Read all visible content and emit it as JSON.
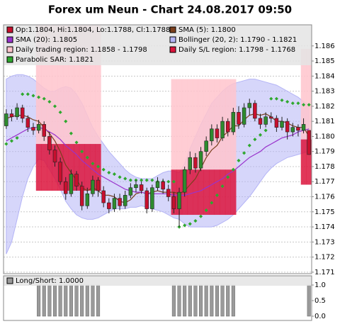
{
  "chart_data": [
    {
      "type": "candlestick",
      "title": "Forex um Neun - Chart 24.08.2017 09:50",
      "name": "Op:1.1804, Hi:1.1804, Lo:1.1788, Cl:1.1788",
      "up_color": "#2e8b2e",
      "down_color": "#c8102e",
      "open": [
        1.1807,
        1.1815,
        1.1813,
        1.1819,
        1.1812,
        1.1806,
        1.1804,
        1.1808,
        1.18,
        1.1791,
        1.1783,
        1.177,
        1.1762,
        1.1775,
        1.1767,
        1.1754,
        1.1762,
        1.1771,
        1.1764,
        1.1756,
        1.1752,
        1.1759,
        1.1754,
        1.1761,
        1.1766,
        1.1768,
        1.1764,
        1.1752,
        1.1766,
        1.177,
        1.1765,
        1.176,
        1.1752,
        1.1763,
        1.1778,
        1.1786,
        1.1779,
        1.179,
        1.1797,
        1.1805,
        1.1799,
        1.181,
        1.1803,
        1.1816,
        1.1808,
        1.1819,
        1.1822,
        1.1812,
        1.1808,
        1.1813,
        1.1812,
        1.1806,
        1.181,
        1.1803,
        1.1806,
        1.1804,
        1.1804
      ],
      "high": [
        1.1818,
        1.1818,
        1.1822,
        1.1821,
        1.1814,
        1.1809,
        1.1811,
        1.181,
        1.1803,
        1.1794,
        1.1786,
        1.1773,
        1.1778,
        1.1777,
        1.177,
        1.1766,
        1.1774,
        1.1773,
        1.1767,
        1.1759,
        1.1762,
        1.1762,
        1.1764,
        1.1769,
        1.1771,
        1.177,
        1.1766,
        1.1768,
        1.1773,
        1.1772,
        1.1768,
        1.1763,
        1.1766,
        1.178,
        1.179,
        1.1789,
        1.1793,
        1.18,
        1.1808,
        1.1808,
        1.1813,
        1.1812,
        1.1819,
        1.182,
        1.1822,
        1.1825,
        1.1824,
        1.1815,
        1.1816,
        1.1816,
        1.1814,
        1.1813,
        1.1812,
        1.1809,
        1.1808,
        1.1812,
        1.1804
      ],
      "low": [
        1.1805,
        1.181,
        1.1811,
        1.1809,
        1.1803,
        1.1801,
        1.1802,
        1.1797,
        1.1788,
        1.178,
        1.1768,
        1.1758,
        1.176,
        1.1764,
        1.1751,
        1.1752,
        1.176,
        1.176,
        1.1753,
        1.1749,
        1.175,
        1.1751,
        1.1752,
        1.1759,
        1.1763,
        1.1762,
        1.1749,
        1.175,
        1.1764,
        1.1762,
        1.1757,
        1.1749,
        1.174,
        1.176,
        1.1775,
        1.1776,
        1.1777,
        1.1787,
        1.1794,
        1.1796,
        1.1797,
        1.18,
        1.1801,
        1.1805,
        1.1806,
        1.1814,
        1.181,
        1.1805,
        1.1806,
        1.1809,
        1.1803,
        1.1804,
        1.1798,
        1.18,
        1.18,
        1.1802,
        1.1788
      ],
      "close": [
        1.1815,
        1.1813,
        1.1819,
        1.1812,
        1.1806,
        1.1804,
        1.1808,
        1.18,
        1.1791,
        1.1783,
        1.177,
        1.1762,
        1.1775,
        1.1767,
        1.1754,
        1.1762,
        1.1771,
        1.1764,
        1.1756,
        1.1752,
        1.1759,
        1.1754,
        1.1761,
        1.1766,
        1.1768,
        1.1764,
        1.1752,
        1.1766,
        1.177,
        1.1765,
        1.176,
        1.1752,
        1.1763,
        1.1778,
        1.1786,
        1.1779,
        1.179,
        1.1797,
        1.1805,
        1.1799,
        1.181,
        1.1803,
        1.1816,
        1.1808,
        1.1819,
        1.1822,
        1.1812,
        1.1808,
        1.1813,
        1.1812,
        1.1806,
        1.181,
        1.1803,
        1.1806,
        1.1804,
        1.1808,
        1.1788
      ],
      "ylim": [
        1.1709,
        1.1874
      ],
      "yticks": [
        1.171,
        1.172,
        1.173,
        1.174,
        1.175,
        1.176,
        1.177,
        1.178,
        1.179,
        {
          "value": 1.18,
          "label": "1.180"
        },
        1.181,
        1.182,
        1.183,
        1.184,
        1.185,
        1.186
      ],
      "grid": true,
      "series": [
        {
          "name": "SMA (5): 1.1800",
          "type": "line",
          "color": "#7b3f1d",
          "values": [
            1.1812,
            1.1813,
            1.1814,
            1.1814,
            1.1813,
            1.1811,
            1.181,
            1.1806,
            1.1802,
            1.1797,
            1.179,
            1.1781,
            1.1776,
            1.1771,
            1.1766,
            1.1764,
            1.1766,
            1.1764,
            1.1761,
            1.1761,
            1.176,
            1.1757,
            1.1756,
            1.1758,
            1.1762,
            1.1763,
            1.1762,
            1.1763,
            1.1764,
            1.1763,
            1.1763,
            1.1763,
            1.1762,
            1.1764,
            1.1768,
            1.1772,
            1.1779,
            1.1786,
            1.1791,
            1.1794,
            1.18,
            1.1803,
            1.1807,
            1.1807,
            1.1811,
            1.1814,
            1.1815,
            1.1814,
            1.1815,
            1.1813,
            1.181,
            1.181,
            1.1809,
            1.1807,
            1.1806,
            1.1806,
            1.18
          ]
        },
        {
          "name": "SMA (20): 1.1805",
          "type": "line",
          "color": "#9933cc",
          "values": [
            1.1797,
            1.1799,
            1.1801,
            1.1803,
            1.1805,
            1.1806,
            1.1806,
            1.1805,
            1.1803,
            1.1801,
            1.1798,
            1.1794,
            1.1791,
            1.1788,
            1.1784,
            1.1781,
            1.1778,
            1.1775,
            1.1773,
            1.1771,
            1.1769,
            1.1767,
            1.1765,
            1.1764,
            1.1763,
            1.1763,
            1.1762,
            1.1762,
            1.1762,
            1.1762,
            1.1762,
            1.1761,
            1.1761,
            1.1761,
            1.1762,
            1.1763,
            1.1764,
            1.1766,
            1.1768,
            1.177,
            1.1772,
            1.1775,
            1.1777,
            1.178,
            1.1783,
            1.1786,
            1.1788,
            1.179,
            1.1793,
            1.1795,
            1.1797,
            1.1799,
            1.18,
            1.1801,
            1.1803,
            1.1804,
            1.1805
          ]
        },
        {
          "name": "Bollinger (20, 2): 1.1790 - 1.1821",
          "type": "band",
          "color": "#b4b4f6",
          "upper": [
            1.1838,
            1.184,
            1.1841,
            1.1841,
            1.184,
            1.1838,
            1.1835,
            1.1832,
            1.183,
            1.183,
            1.1832,
            1.1833,
            1.1832,
            1.1828,
            1.1822,
            1.1814,
            1.1806,
            1.18,
            1.1795,
            1.179,
            1.1786,
            1.1782,
            1.1778,
            1.1775,
            1.1773,
            1.1772,
            1.1772,
            1.1772,
            1.1774,
            1.1776,
            1.1777,
            1.1777,
            1.1776,
            1.1782,
            1.1792,
            1.18,
            1.1808,
            1.1815,
            1.1822,
            1.1826,
            1.183,
            1.1833,
            1.1835,
            1.1836,
            1.1837,
            1.1838,
            1.1838,
            1.1837,
            1.1836,
            1.1835,
            1.1834,
            1.1832,
            1.183,
            1.1828,
            1.1826,
            1.1823,
            1.1821
          ],
          "lower": [
            1.1722,
            1.173,
            1.1745,
            1.176,
            1.1772,
            1.178,
            1.1785,
            1.1784,
            1.1778,
            1.1772,
            1.1765,
            1.1757,
            1.1752,
            1.1748,
            1.1746,
            1.1745,
            1.1745,
            1.1746,
            1.1748,
            1.175,
            1.1752,
            1.1752,
            1.1752,
            1.1753,
            1.1753,
            1.1754,
            1.1753,
            1.1752,
            1.1751,
            1.175,
            1.1748,
            1.1746,
            1.1745,
            1.1742,
            1.174,
            1.174,
            1.174,
            1.174,
            1.174,
            1.1741,
            1.1743,
            1.1745,
            1.1748,
            1.1752,
            1.1756,
            1.176,
            1.1765,
            1.177,
            1.1775,
            1.1779,
            1.1782,
            1.1784,
            1.1786,
            1.1787,
            1.1788,
            1.1789,
            1.179
          ]
        },
        {
          "name": "Daily trading region: 1.1858 - 1.1798",
          "type": "region",
          "color": "#ffc4cc",
          "upper": [
            null,
            null,
            null,
            null,
            null,
            null,
            1.1874,
            1.1874,
            1.1874,
            1.1874,
            1.1874,
            1.1874,
            1.1874,
            1.1874,
            1.1874,
            1.1874,
            1.1874,
            1.1874,
            null,
            null,
            null,
            null,
            null,
            null,
            null,
            null,
            null,
            null,
            null,
            null,
            null,
            1.1838,
            1.1838,
            1.1838,
            1.1838,
            1.1838,
            1.1838,
            1.1838,
            1.1838,
            1.1838,
            1.1838,
            1.1838,
            1.1838,
            null,
            null,
            null,
            null,
            null,
            null,
            null,
            null,
            null,
            null,
            null,
            null,
            1.1858,
            1.1858
          ],
          "lower": [
            null,
            null,
            null,
            null,
            null,
            null,
            1.1795,
            1.1795,
            1.1795,
            1.1795,
            1.1795,
            1.1795,
            1.1795,
            1.1795,
            1.1795,
            1.1795,
            1.1795,
            1.1795,
            null,
            null,
            null,
            null,
            null,
            null,
            null,
            null,
            null,
            null,
            null,
            null,
            null,
            1.1778,
            1.1778,
            1.1778,
            1.1778,
            1.1778,
            1.1778,
            1.1778,
            1.1778,
            1.1778,
            1.1778,
            1.1778,
            1.1778,
            null,
            null,
            null,
            null,
            null,
            null,
            null,
            null,
            null,
            null,
            null,
            null,
            1.1798,
            1.1798
          ]
        },
        {
          "name": "Daily S/L region: 1.1798 - 1.1768",
          "type": "region",
          "color": "#dc143c",
          "upper": [
            null,
            null,
            null,
            null,
            null,
            null,
            1.1795,
            1.1795,
            1.1795,
            1.1795,
            1.1795,
            1.1795,
            1.1795,
            1.1795,
            1.1795,
            1.1795,
            1.1795,
            1.1795,
            null,
            null,
            null,
            null,
            null,
            null,
            null,
            null,
            null,
            null,
            null,
            null,
            null,
            1.1778,
            1.1778,
            1.1778,
            1.1778,
            1.1778,
            1.1778,
            1.1778,
            1.1778,
            1.1778,
            1.1778,
            1.1778,
            1.1778,
            null,
            null,
            null,
            null,
            null,
            null,
            null,
            null,
            null,
            null,
            null,
            null,
            1.1798,
            1.1798
          ],
          "lower": [
            null,
            null,
            null,
            null,
            null,
            null,
            1.1764,
            1.1764,
            1.1764,
            1.1764,
            1.1764,
            1.1764,
            1.1764,
            1.1764,
            1.1764,
            1.1764,
            1.1764,
            1.1764,
            null,
            null,
            null,
            null,
            null,
            null,
            null,
            null,
            null,
            null,
            null,
            null,
            null,
            1.1748,
            1.1748,
            1.1748,
            1.1748,
            1.1748,
            1.1748,
            1.1748,
            1.1748,
            1.1748,
            1.1748,
            1.1748,
            1.1748,
            null,
            null,
            null,
            null,
            null,
            null,
            null,
            null,
            null,
            null,
            null,
            null,
            1.1768,
            1.1768
          ]
        },
        {
          "name": "Parabolic SAR: 1.1821",
          "type": "dots",
          "color": "#2ea82e",
          "values": [
            1.1795,
            1.1797,
            1.1799,
            1.1828,
            1.1828,
            1.1827,
            1.1826,
            1.1825,
            1.1823,
            1.182,
            1.1816,
            1.181,
            1.1802,
            1.1796,
            1.179,
            1.1786,
            1.1782,
            1.178,
            1.1778,
            1.1776,
            1.1775,
            1.1773,
            1.1772,
            1.1771,
            1.1771,
            1.1771,
            1.1771,
            1.1771,
            1.177,
            1.177,
            1.177,
            1.177,
            1.174,
            1.1741,
            1.1742,
            1.1744,
            1.1747,
            1.1751,
            1.1756,
            1.1761,
            1.1767,
            1.1773,
            1.1778,
            1.1784,
            1.1789,
            1.1794,
            1.1798,
            1.1801,
            1.1804,
            1.1825,
            1.1825,
            1.1824,
            1.1823,
            1.1822,
            1.1822,
            1.1821,
            1.1821
          ]
        }
      ]
    },
    {
      "type": "bar",
      "name": "Long/Short: 1.0000",
      "color": "#9a9a9a",
      "values": [
        0,
        0,
        0,
        0,
        0,
        0,
        1,
        1,
        1,
        1,
        1,
        1,
        1,
        1,
        1,
        1,
        1,
        1,
        0,
        0,
        0,
        0,
        0,
        0,
        0,
        0,
        0,
        0,
        0,
        0,
        0,
        1,
        1,
        1,
        1,
        1,
        1,
        1,
        1,
        1,
        1,
        1,
        1,
        0,
        0,
        0,
        0,
        0,
        0,
        0,
        0,
        0,
        0,
        0,
        0,
        0,
        1
      ],
      "ylim": [
        0,
        1
      ],
      "yticks": [
        {
          "value": 0,
          "label": "0.0"
        },
        {
          "value": 0.5,
          "label": "0.5"
        },
        {
          "value": 1,
          "label": "1.0"
        }
      ]
    }
  ]
}
